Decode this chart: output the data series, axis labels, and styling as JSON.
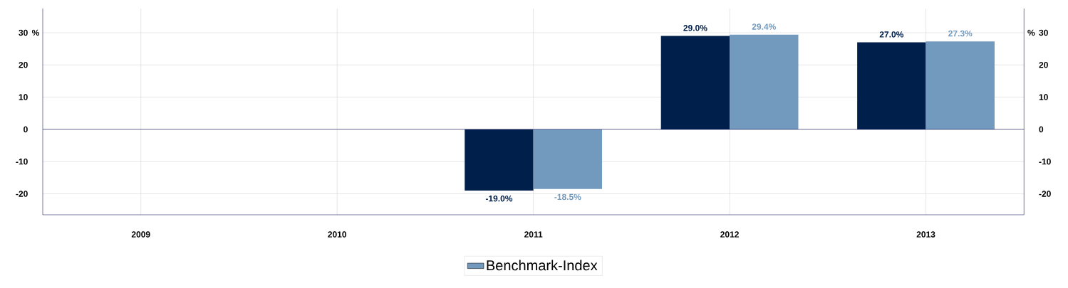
{
  "chart_data": {
    "type": "bar",
    "categories": [
      "2009",
      "2010",
      "2011",
      "2012",
      "2013"
    ],
    "series": [
      {
        "color": "#001f4b",
        "values": [
          null,
          null,
          -19.0,
          29.0,
          27.0
        ],
        "value_labels": [
          null,
          null,
          "-19.0%",
          "29.0%",
          "27.0%"
        ]
      },
      {
        "name": "Benchmark-Index",
        "color": "#7299be",
        "values": [
          null,
          null,
          -18.5,
          29.4,
          27.3
        ],
        "value_labels": [
          null,
          null,
          "-18.5%",
          "29.4%",
          "27.3%"
        ]
      }
    ],
    "ylabel": "%",
    "y2label": "%",
    "ylim": [
      -26.5,
      37.5
    ],
    "yticks": [
      -20,
      -10,
      0,
      10,
      20,
      30
    ],
    "y2lim": [
      -26.5,
      37.5
    ],
    "y2ticks": [
      -20,
      -10,
      0,
      10,
      20,
      30
    ],
    "grid": true,
    "legend": "bottom"
  }
}
